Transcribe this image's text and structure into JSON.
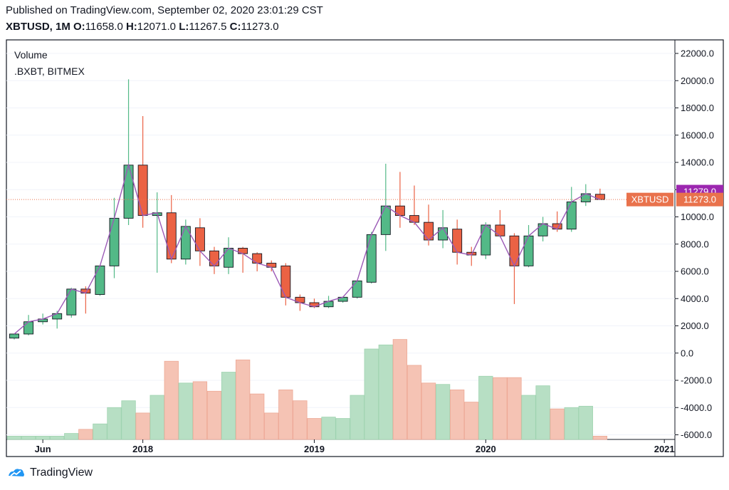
{
  "header": {
    "published": "Published on TradingView.com, September 02, 2020 23:01:29 CST",
    "symbol": "XBTUSD, 1M",
    "o_label": "O:",
    "o_value": "11658.0",
    "h_label": "H:",
    "h_value": "12071.0",
    "l_label": "L:",
    "l_value": "11267.5",
    "c_label": "C:",
    "c_value": "11273.0"
  },
  "legend": {
    "line1": "Volume",
    "line2": ".BXBT, BITMEX"
  },
  "footer": {
    "brand": "TradingView"
  },
  "colors": {
    "up": "#53b987",
    "down": "#eb6244",
    "upVol": "#b7dfc4",
    "downVol": "#f5c3b4",
    "ma": "#9b59b6",
    "lastPrice": "#e9724c",
    "markerPurple": "#9c27b0"
  },
  "chart_data": {
    "type": "candlestick",
    "interval": "1M",
    "ylim": [
      -6000,
      22500
    ],
    "y_ticks": [
      22000,
      20000,
      18000,
      16000,
      14000,
      12000,
      10000,
      8000,
      6000,
      4000,
      2000,
      0,
      -2000,
      -4000,
      -6000
    ],
    "y_tick_labels": [
      "22000.0",
      "20000.0",
      "18000.0",
      "16000.0",
      "14000.0",
      "12000.0",
      "10000.0",
      "8000.0",
      "6000.0",
      "4000.0",
      "2000.0",
      "0.0",
      "-2000.0",
      "-4000.0",
      "-6000.0"
    ],
    "x_ticks": [
      {
        "label": "Jun",
        "index": 2
      },
      {
        "label": "2018",
        "index": 9
      },
      {
        "label": "2019",
        "index": 21
      },
      {
        "label": "2020",
        "index": 33
      },
      {
        "label": "2021",
        "index": 45.5
      }
    ],
    "candles": [
      {
        "o": 1100,
        "h": 1400,
        "l": 1000,
        "c": 1400
      },
      {
        "o": 1400,
        "h": 2800,
        "l": 1300,
        "c": 2300
      },
      {
        "o": 2300,
        "h": 2900,
        "l": 2100,
        "c": 2500
      },
      {
        "o": 2500,
        "h": 3100,
        "l": 1800,
        "c": 2900
      },
      {
        "o": 2800,
        "h": 4800,
        "l": 2600,
        "c": 4700
      },
      {
        "o": 4700,
        "h": 4900,
        "l": 2900,
        "c": 4400
      },
      {
        "o": 4300,
        "h": 6400,
        "l": 4200,
        "c": 6400
      },
      {
        "o": 6400,
        "h": 11400,
        "l": 5500,
        "c": 9900
      },
      {
        "o": 9900,
        "h": 20100,
        "l": 9400,
        "c": 13800
      },
      {
        "o": 13800,
        "h": 17400,
        "l": 9200,
        "c": 10100
      },
      {
        "o": 10100,
        "h": 11800,
        "l": 5900,
        "c": 10300
      },
      {
        "o": 10300,
        "h": 11600,
        "l": 6600,
        "c": 6900
      },
      {
        "o": 6900,
        "h": 9800,
        "l": 6500,
        "c": 9300
      },
      {
        "o": 9200,
        "h": 9900,
        "l": 6400,
        "c": 7500
      },
      {
        "o": 7500,
        "h": 7800,
        "l": 5800,
        "c": 6400
      },
      {
        "o": 6300,
        "h": 8500,
        "l": 5800,
        "c": 7700
      },
      {
        "o": 7700,
        "h": 7800,
        "l": 5900,
        "c": 7300
      },
      {
        "o": 7300,
        "h": 7400,
        "l": 6000,
        "c": 6600
      },
      {
        "o": 6600,
        "h": 6800,
        "l": 6000,
        "c": 6300
      },
      {
        "o": 6400,
        "h": 6600,
        "l": 3500,
        "c": 4100
      },
      {
        "o": 4100,
        "h": 4300,
        "l": 3100,
        "c": 3700
      },
      {
        "o": 3700,
        "h": 4000,
        "l": 3300,
        "c": 3400
      },
      {
        "o": 3400,
        "h": 4200,
        "l": 3300,
        "c": 3800
      },
      {
        "o": 3800,
        "h": 4100,
        "l": 3700,
        "c": 4100
      },
      {
        "o": 4100,
        "h": 5300,
        "l": 4000,
        "c": 5300
      },
      {
        "o": 5200,
        "h": 8900,
        "l": 5100,
        "c": 8700
      },
      {
        "o": 8700,
        "h": 13900,
        "l": 7500,
        "c": 10800
      },
      {
        "o": 10800,
        "h": 13300,
        "l": 9200,
        "c": 10100
      },
      {
        "o": 10100,
        "h": 12300,
        "l": 9400,
        "c": 9600
      },
      {
        "o": 9600,
        "h": 10900,
        "l": 7900,
        "c": 8300
      },
      {
        "o": 8300,
        "h": 10500,
        "l": 7700,
        "c": 9200
      },
      {
        "o": 9100,
        "h": 9800,
        "l": 6500,
        "c": 7400
      },
      {
        "o": 7400,
        "h": 7800,
        "l": 6400,
        "c": 7200
      },
      {
        "o": 7200,
        "h": 9600,
        "l": 6900,
        "c": 9400
      },
      {
        "o": 9400,
        "h": 10500,
        "l": 8500,
        "c": 8600
      },
      {
        "o": 8600,
        "h": 8800,
        "l": 3600,
        "c": 6400
      },
      {
        "o": 6400,
        "h": 9400,
        "l": 6300,
        "c": 8600
      },
      {
        "o": 8600,
        "h": 10000,
        "l": 8200,
        "c": 9500
      },
      {
        "o": 9500,
        "h": 10400,
        "l": 8900,
        "c": 9100
      },
      {
        "o": 9100,
        "h": 12200,
        "l": 8900,
        "c": 11100
      },
      {
        "o": 11100,
        "h": 12400,
        "l": 10800,
        "c": 11700
      },
      {
        "o": 11658,
        "h": 12071,
        "l": 11267.5,
        "c": 11273
      }
    ],
    "volume": [
      -6100,
      -6100,
      -6100,
      -6100,
      -5900,
      -5600,
      -5200,
      -4000,
      -3500,
      -4400,
      -3100,
      -600,
      -2200,
      -2100,
      -2800,
      -1400,
      -500,
      -3000,
      -4400,
      -2700,
      -3500,
      -4800,
      -4700,
      -4800,
      -3100,
      300,
      600,
      1000,
      -900,
      -2200,
      -2300,
      -2700,
      -3600,
      -1700,
      -1800,
      -1800,
      -3100,
      -2400,
      -4100,
      -4000,
      -3900,
      -6100
    ],
    "ma_line": "close",
    "last_price": {
      "label": "XBTUSD",
      "value": "11273.0",
      "y": 11273
    },
    "marker": {
      "value": "11279.0",
      "y": 11279
    }
  }
}
